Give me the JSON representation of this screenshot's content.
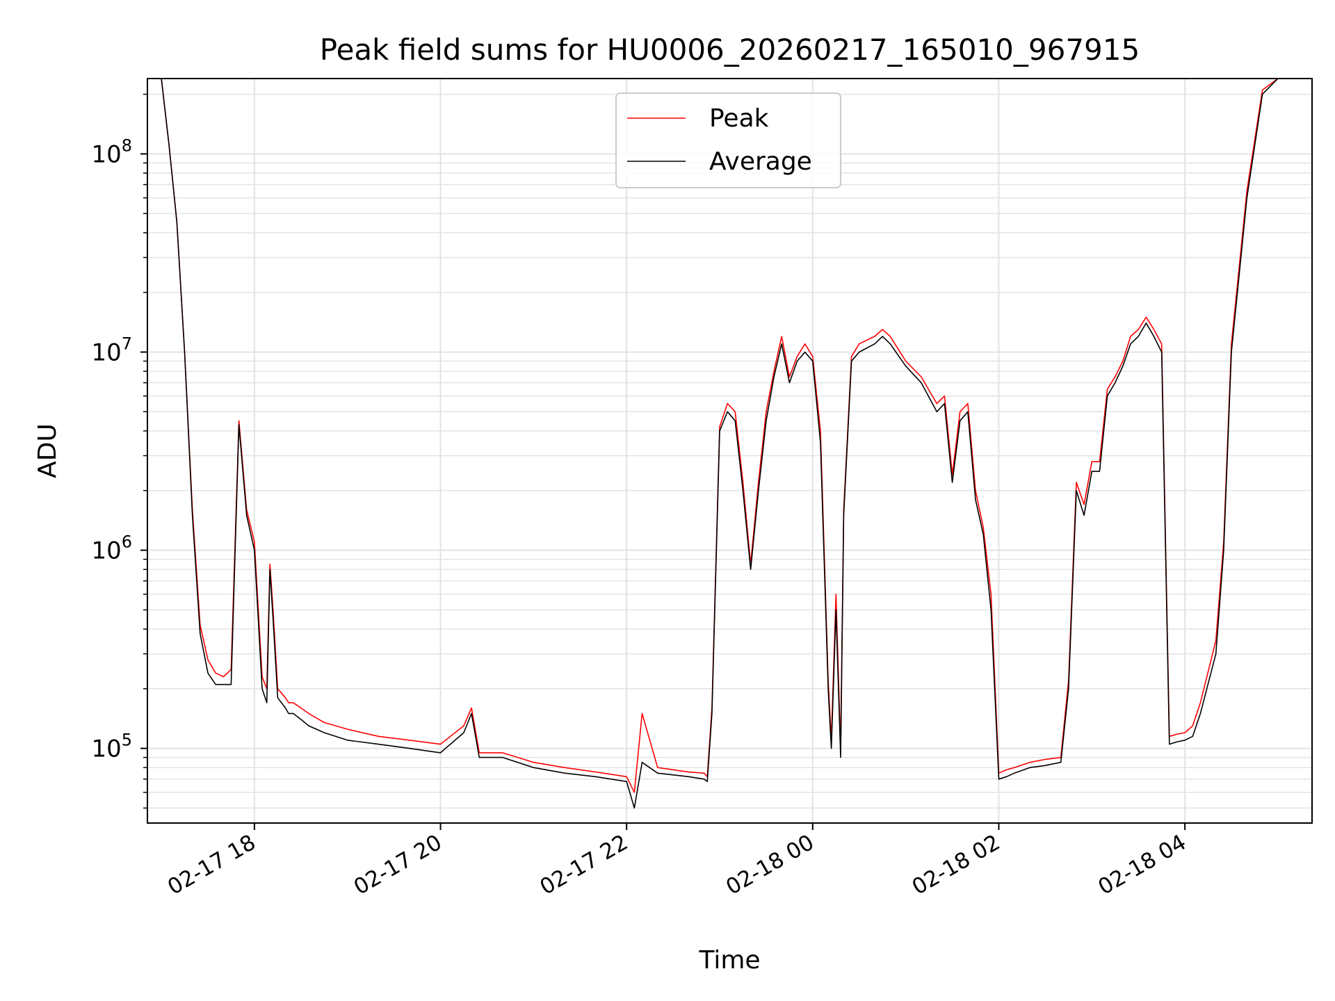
{
  "chart_data": {
    "type": "line",
    "title": "Peak field sums for HU0006_20260217_165010_967915",
    "xlabel": "Time",
    "ylabel": "ADU",
    "yscale": "log",
    "ylim": [
      42000,
      240000000
    ],
    "xlim": [
      "02-17 16:51",
      "02-18 05:22"
    ],
    "grid": true,
    "legend": "upper center",
    "x_ticks": [
      "02-17 18",
      "02-17 20",
      "02-17 22",
      "02-18 00",
      "02-18 02",
      "02-18 04"
    ],
    "y_ticks": [
      {
        "base": "10",
        "exp": "5"
      },
      {
        "base": "10",
        "exp": "6"
      },
      {
        "base": "10",
        "exp": "7"
      },
      {
        "base": "10",
        "exp": "8"
      }
    ],
    "series": [
      {
        "name": "Peak",
        "color": "#ff0000"
      },
      {
        "name": "Average",
        "color": "#000000"
      }
    ],
    "x": [
      "02-17 17:00",
      "02-17 17:05",
      "02-17 17:10",
      "02-17 17:15",
      "02-17 17:20",
      "02-17 17:25",
      "02-17 17:30",
      "02-17 17:35",
      "02-17 17:40",
      "02-17 17:45",
      "02-17 17:50",
      "02-17 17:55",
      "02-17 18:00",
      "02-17 18:05",
      "02-17 18:08",
      "02-17 18:10",
      "02-17 18:12",
      "02-17 18:15",
      "02-17 18:20",
      "02-17 18:22",
      "02-17 18:25",
      "02-17 18:30",
      "02-17 18:35",
      "02-17 18:45",
      "02-17 19:00",
      "02-17 19:20",
      "02-17 19:40",
      "02-17 20:00",
      "02-17 20:15",
      "02-17 20:20",
      "02-17 20:25",
      "02-17 20:40",
      "02-17 21:00",
      "02-17 21:20",
      "02-17 21:40",
      "02-17 22:00",
      "02-17 22:05",
      "02-17 22:10",
      "02-17 22:20",
      "02-17 22:40",
      "02-17 22:50",
      "02-17 22:52",
      "02-17 22:55",
      "02-17 23:00",
      "02-17 23:05",
      "02-17 23:10",
      "02-17 23:15",
      "02-17 23:20",
      "02-17 23:25",
      "02-17 23:30",
      "02-17 23:35",
      "02-17 23:40",
      "02-17 23:45",
      "02-17 23:50",
      "02-17 23:55",
      "02-18 00:00",
      "02-18 00:05",
      "02-18 00:10",
      "02-18 00:12",
      "02-18 00:15",
      "02-18 00:18",
      "02-18 00:20",
      "02-18 00:25",
      "02-18 00:30",
      "02-18 00:40",
      "02-18 00:45",
      "02-18 00:50",
      "02-18 01:00",
      "02-18 01:10",
      "02-18 01:20",
      "02-18 01:25",
      "02-18 01:30",
      "02-18 01:35",
      "02-18 01:40",
      "02-18 01:45",
      "02-18 01:50",
      "02-18 01:55",
      "02-18 02:00",
      "02-18 02:05",
      "02-18 02:10",
      "02-18 02:20",
      "02-18 02:30",
      "02-18 02:40",
      "02-18 02:45",
      "02-18 02:50",
      "02-18 02:55",
      "02-18 03:00",
      "02-18 03:05",
      "02-18 03:10",
      "02-18 03:15",
      "02-18 03:20",
      "02-18 03:25",
      "02-18 03:30",
      "02-18 03:35",
      "02-18 03:40",
      "02-18 03:45",
      "02-18 03:50",
      "02-18 03:55",
      "02-18 04:00",
      "02-18 04:05",
      "02-18 04:10",
      "02-18 04:20",
      "02-18 04:25",
      "02-18 04:30",
      "02-18 04:40",
      "02-18 04:50",
      "02-18 05:00",
      "02-18 05:10",
      "02-18 05:15",
      "02-18 05:20"
    ],
    "average": [
      240000000,
      110000000,
      45000000,
      10000000,
      1500000,
      380000,
      240000,
      210000,
      210000,
      210000,
      4300000,
      1500000,
      1000000,
      200000,
      170000,
      800000,
      450000,
      180000,
      160000,
      150000,
      150000,
      140000,
      130000,
      120000,
      110000,
      105000,
      100000,
      95000,
      120000,
      150000,
      90000,
      90000,
      80000,
      75000,
      72000,
      68000,
      50000,
      85000,
      75000,
      72000,
      70000,
      68000,
      150000,
      4000000,
      5000000,
      4500000,
      2000000,
      800000,
      2000000,
      4500000,
      7500000,
      11000000,
      7000000,
      9000000,
      10000000,
      9000000,
      3500000,
      200000,
      100000,
      500000,
      90000,
      1500000,
      9000000,
      10000000,
      11000000,
      12000000,
      11000000,
      8500000,
      7000000,
      5000000,
      5500000,
      2200000,
      4500000,
      5000000,
      1800000,
      1200000,
      500000,
      70000,
      72000,
      75000,
      80000,
      82000,
      85000,
      200000,
      2000000,
      1500000,
      2500000,
      2500000,
      6000000,
      7000000,
      8500000,
      11000000,
      12000000,
      14000000,
      12000000,
      10000000,
      105000,
      108000,
      110000,
      115000,
      150000,
      300000,
      1000000,
      10000000,
      60000000,
      200000000,
      240000000,
      240000000
    ],
    "peak": [
      240000000,
      110000000,
      45000000,
      10000000,
      1600000,
      420000,
      280000,
      240000,
      230000,
      250000,
      4500000,
      1600000,
      1100000,
      230000,
      200000,
      850000,
      500000,
      200000,
      180000,
      170000,
      170000,
      160000,
      150000,
      135000,
      125000,
      115000,
      110000,
      105000,
      130000,
      160000,
      95000,
      95000,
      85000,
      80000,
      76000,
      72000,
      60000,
      150000,
      80000,
      76000,
      75000,
      72000,
      160000,
      4200000,
      5500000,
      5000000,
      2200000,
      850000,
      2200000,
      5000000,
      8000000,
      12000000,
      7500000,
      9500000,
      11000000,
      9500000,
      4000000,
      220000,
      110000,
      600000,
      100000,
      1600000,
      9500000,
      11000000,
      12000000,
      13000000,
      12000000,
      9000000,
      7500000,
      5500000,
      6000000,
      2400000,
      5000000,
      5500000,
      2000000,
      1300000,
      600000,
      75000,
      78000,
      80000,
      85000,
      88000,
      90000,
      220000,
      2200000,
      1700000,
      2800000,
      2800000,
      6500000,
      7500000,
      9000000,
      12000000,
      13000000,
      15000000,
      13000000,
      11000000,
      115000,
      118000,
      120000,
      130000,
      170000,
      350000,
      1100000,
      11000000,
      65000000,
      210000000,
      240000000,
      240000000
    ]
  }
}
